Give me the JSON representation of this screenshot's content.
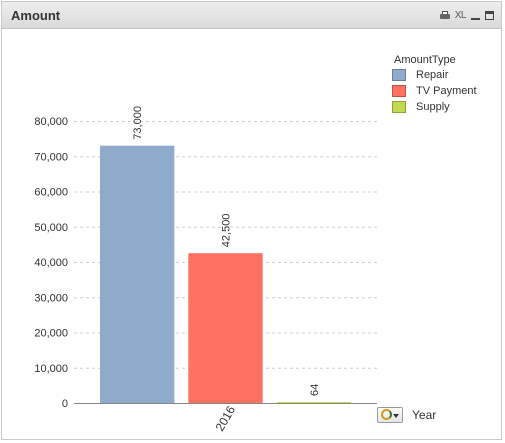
{
  "window": {
    "title": "Amount",
    "icons": [
      "print-icon",
      "xl-icon",
      "minimize-icon",
      "maximize-icon"
    ],
    "xl_label": "XL"
  },
  "legend": {
    "title": "AmountType",
    "items": [
      {
        "label": "Repair",
        "color": "#8FAACA"
      },
      {
        "label": "TV Payment",
        "color": "#FF7160"
      },
      {
        "label": "Supply",
        "color": "#C2D952"
      }
    ]
  },
  "dimension_control": {
    "label": "Year",
    "icon": "cycle-group-icon"
  },
  "chart_data": {
    "type": "bar",
    "title": "",
    "xlabel": "",
    "ylabel": "",
    "categories": [
      "2016"
    ],
    "series": [
      {
        "name": "Repair",
        "values": [
          73000
        ],
        "label": "73,000"
      },
      {
        "name": "TV Payment",
        "values": [
          42500
        ],
        "label": "42,500"
      },
      {
        "name": "Supply",
        "values": [
          64
        ],
        "label": "64"
      }
    ],
    "ylim": [
      0,
      80000
    ],
    "yticks": [
      0,
      10000,
      20000,
      30000,
      40000,
      50000,
      60000,
      70000,
      80000
    ],
    "ytick_labels": [
      "0",
      "10,000",
      "20,000",
      "30,000",
      "40,000",
      "50,000",
      "60,000",
      "70,000",
      "80,000"
    ],
    "grid": true,
    "legend_position": "top-right",
    "orientation": "vertical",
    "grouping": "grouped"
  }
}
